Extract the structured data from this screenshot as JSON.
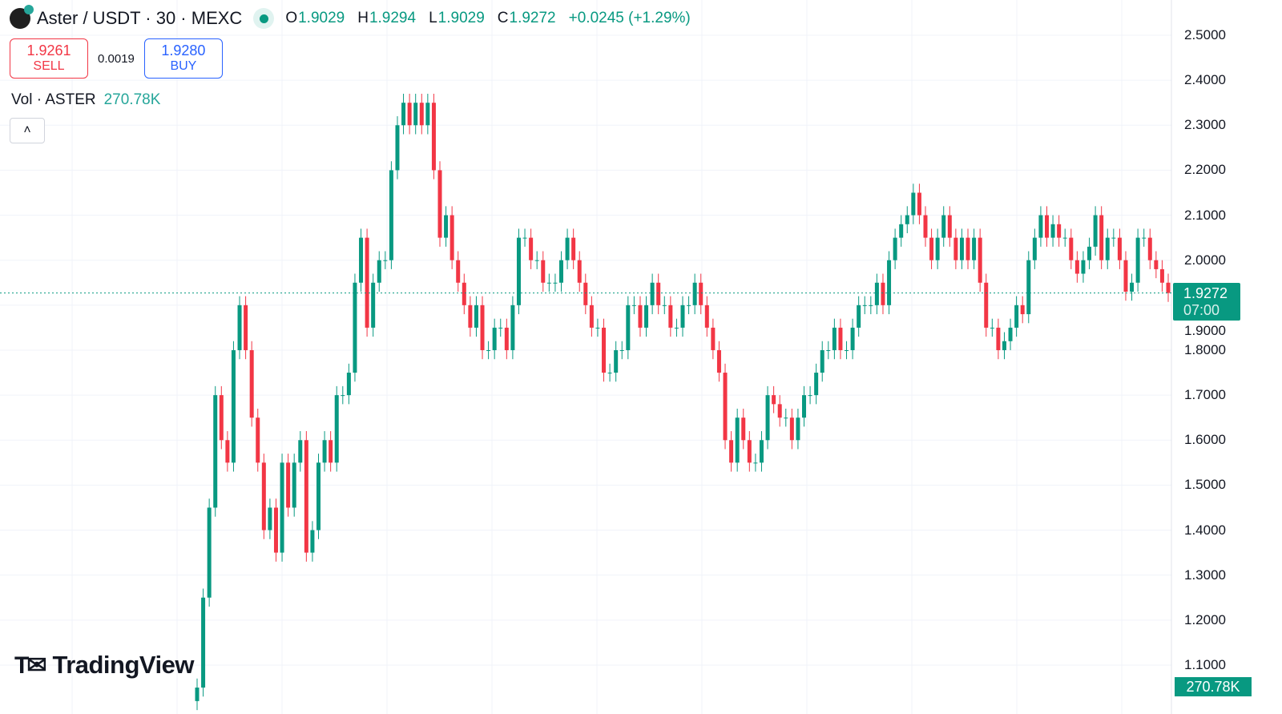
{
  "header": {
    "symbol": "Aster / USDT · 30 · MEXC",
    "ohlc": {
      "o_label": "O",
      "o": "1.9029",
      "h_label": "H",
      "h": "1.9294",
      "l_label": "L",
      "l": "1.9029",
      "c_label": "C",
      "c": "1.9272",
      "change": "+0.0245 (+1.29%)"
    }
  },
  "trade": {
    "sell_price": "1.9261",
    "sell_label": "SELL",
    "spread": "0.0019",
    "buy_price": "1.9280",
    "buy_label": "BUY"
  },
  "volume": {
    "label": "Vol · ASTER",
    "value": "270.78K"
  },
  "collapse_icon": "chevron-up-icon",
  "brand": "TradingView",
  "last_price": {
    "price": "1.9272",
    "countdown": "07:00"
  },
  "colors": {
    "up": "#089981",
    "down": "#f23645",
    "grid": "#f0f3fa",
    "accent": "#089981"
  },
  "chart_data": {
    "type": "candlestick",
    "title": "",
    "interval": "30",
    "ylim": [
      1.1,
      2.5
    ],
    "yticks": [
      "2.5000",
      "2.4000",
      "2.3000",
      "2.2000",
      "2.1000",
      "2.0000",
      "1.9000",
      "1.8000",
      "1.7000",
      "1.6000",
      "1.5000",
      "1.4000",
      "1.3000",
      "1.2000",
      "1.1000"
    ],
    "grid": true,
    "close": [
      1.05,
      1.25,
      1.45,
      1.7,
      1.6,
      1.55,
      1.8,
      1.9,
      1.8,
      1.65,
      1.55,
      1.4,
      1.45,
      1.35,
      1.55,
      1.45,
      1.55,
      1.6,
      1.35,
      1.4,
      1.55,
      1.6,
      1.55,
      1.7,
      1.7,
      1.75,
      1.95,
      2.05,
      1.85,
      1.95,
      2.0,
      2.0,
      2.2,
      2.3,
      2.35,
      2.3,
      2.35,
      2.3,
      2.35,
      2.2,
      2.05,
      2.1,
      2.0,
      1.95,
      1.9,
      1.85,
      1.9,
      1.8,
      1.8,
      1.85,
      1.85,
      1.8,
      1.9,
      2.05,
      2.05,
      2.0,
      2.0,
      1.95,
      1.95,
      1.95,
      2.0,
      2.05,
      2.0,
      1.95,
      1.9,
      1.85,
      1.85,
      1.75,
      1.75,
      1.8,
      1.8,
      1.9,
      1.9,
      1.85,
      1.9,
      1.95,
      1.9,
      1.9,
      1.85,
      1.85,
      1.9,
      1.9,
      1.95,
      1.9,
      1.85,
      1.8,
      1.75,
      1.6,
      1.55,
      1.65,
      1.6,
      1.55,
      1.55,
      1.6,
      1.7,
      1.68,
      1.65,
      1.65,
      1.6,
      1.65,
      1.7,
      1.7,
      1.75,
      1.8,
      1.8,
      1.85,
      1.8,
      1.8,
      1.85,
      1.9,
      1.9,
      1.9,
      1.95,
      1.9,
      2.0,
      2.05,
      2.08,
      2.1,
      2.15,
      2.1,
      2.05,
      2.0,
      2.05,
      2.1,
      2.05,
      2.0,
      2.05,
      2.0,
      2.05,
      1.95,
      1.85,
      1.85,
      1.8,
      1.82,
      1.85,
      1.9,
      1.88,
      2.0,
      2.05,
      2.1,
      2.05,
      2.08,
      2.05,
      2.05,
      2.0,
      1.97,
      2.0,
      2.03,
      2.1,
      2.0,
      2.05,
      2.05,
      2.0,
      1.93,
      1.95,
      2.05,
      2.05,
      2.0,
      1.98,
      1.95,
      1.9272
    ],
    "last": 1.9272
  }
}
